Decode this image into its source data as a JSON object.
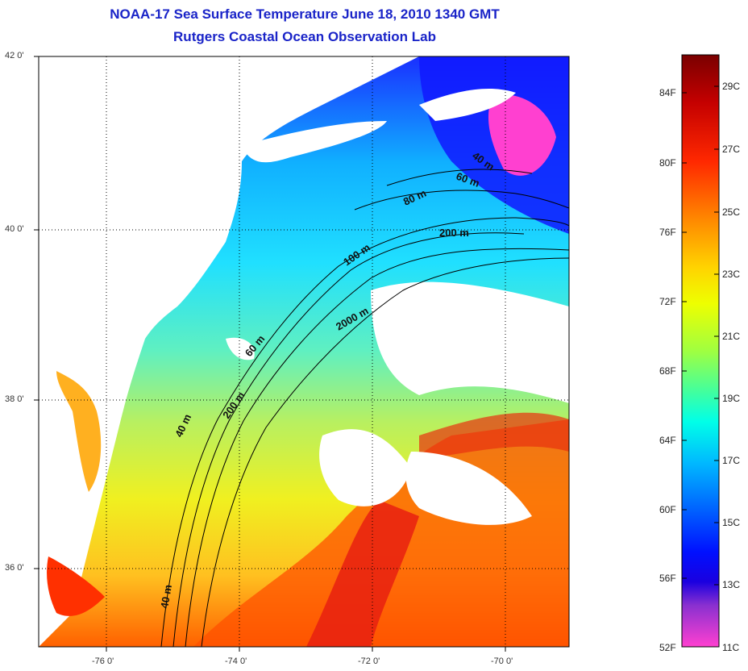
{
  "title": {
    "line1": "NOAA-17 Sea Surface Temperature June 18, 2010 1340 GMT",
    "line2": "Rutgers Coastal Ocean Observation Lab"
  },
  "axes": {
    "lat_ticks": [
      "42 0'",
      "40 0'",
      "38 0'",
      "36 0'"
    ],
    "lon_ticks": [
      "-76 0'",
      "-74 0'",
      "-72 0'",
      "-70 0'"
    ]
  },
  "contour_labels": [
    "40 m",
    "60 m",
    "80 m",
    "200 m",
    "100 m",
    "2000 m",
    "60 m",
    "40 m",
    "200 m",
    "40 m"
  ],
  "colorbar": {
    "fahrenheit": [
      "84F",
      "80F",
      "76F",
      "72F",
      "68F",
      "64F",
      "60F",
      "56F",
      "52F"
    ],
    "celsius": [
      "29C",
      "27C",
      "25C",
      "23C",
      "21C",
      "19C",
      "17C",
      "15C",
      "13C",
      "11C"
    ],
    "colors": [
      "#7a0000",
      "#c80000",
      "#ff3000",
      "#ff8a00",
      "#ffd000",
      "#e8ff00",
      "#9cff40",
      "#30ff90",
      "#00ffe0",
      "#00c0ff",
      "#0070ff",
      "#0020ff",
      "#1a00e0",
      "#8030d0",
      "#e040d8",
      "#ff40d0"
    ]
  }
}
